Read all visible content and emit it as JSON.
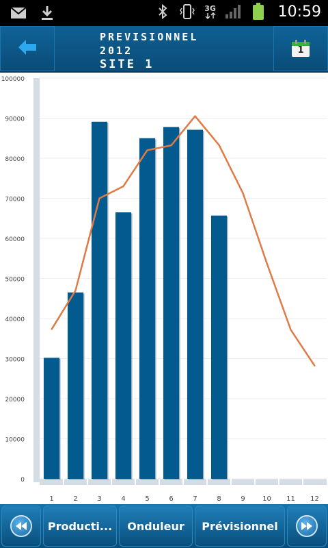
{
  "status": {
    "time": "10:59",
    "network": "3G"
  },
  "header": {
    "title_line1": "PREVISIONNEL",
    "title_line2": "2012",
    "title_line3": "SITE 1",
    "back_icon": "arrow-left-icon",
    "calendar_icon": "calendar-icon",
    "calendar_day": "1"
  },
  "chart_data": {
    "type": "bar",
    "title": "",
    "xlabel": "",
    "ylabel": "",
    "categories": [
      "1",
      "2",
      "3",
      "4",
      "5",
      "6",
      "7",
      "8",
      "9",
      "10",
      "11",
      "12"
    ],
    "ylim": [
      0,
      100000
    ],
    "yticks": [
      0,
      10000,
      20000,
      30000,
      40000,
      50000,
      60000,
      70000,
      80000,
      90000,
      100000
    ],
    "grid": true,
    "legend": "none",
    "series": [
      {
        "kind": "bar",
        "color": "#035a8e",
        "values": [
          30200,
          46500,
          89100,
          66500,
          85000,
          87800,
          87100,
          65700,
          null,
          null,
          null,
          null
        ]
      },
      {
        "kind": "line",
        "color": "#e07a45",
        "values": [
          37300,
          47000,
          70000,
          73000,
          82000,
          83200,
          90500,
          83300,
          71300,
          53800,
          37200,
          28200
        ]
      }
    ]
  },
  "nav": {
    "prev_icon": "rewind-icon",
    "next_icon": "fast-forward-icon",
    "tab1": "Producti...",
    "tab2": "Onduleur",
    "tab3": "Prévisionnel"
  }
}
